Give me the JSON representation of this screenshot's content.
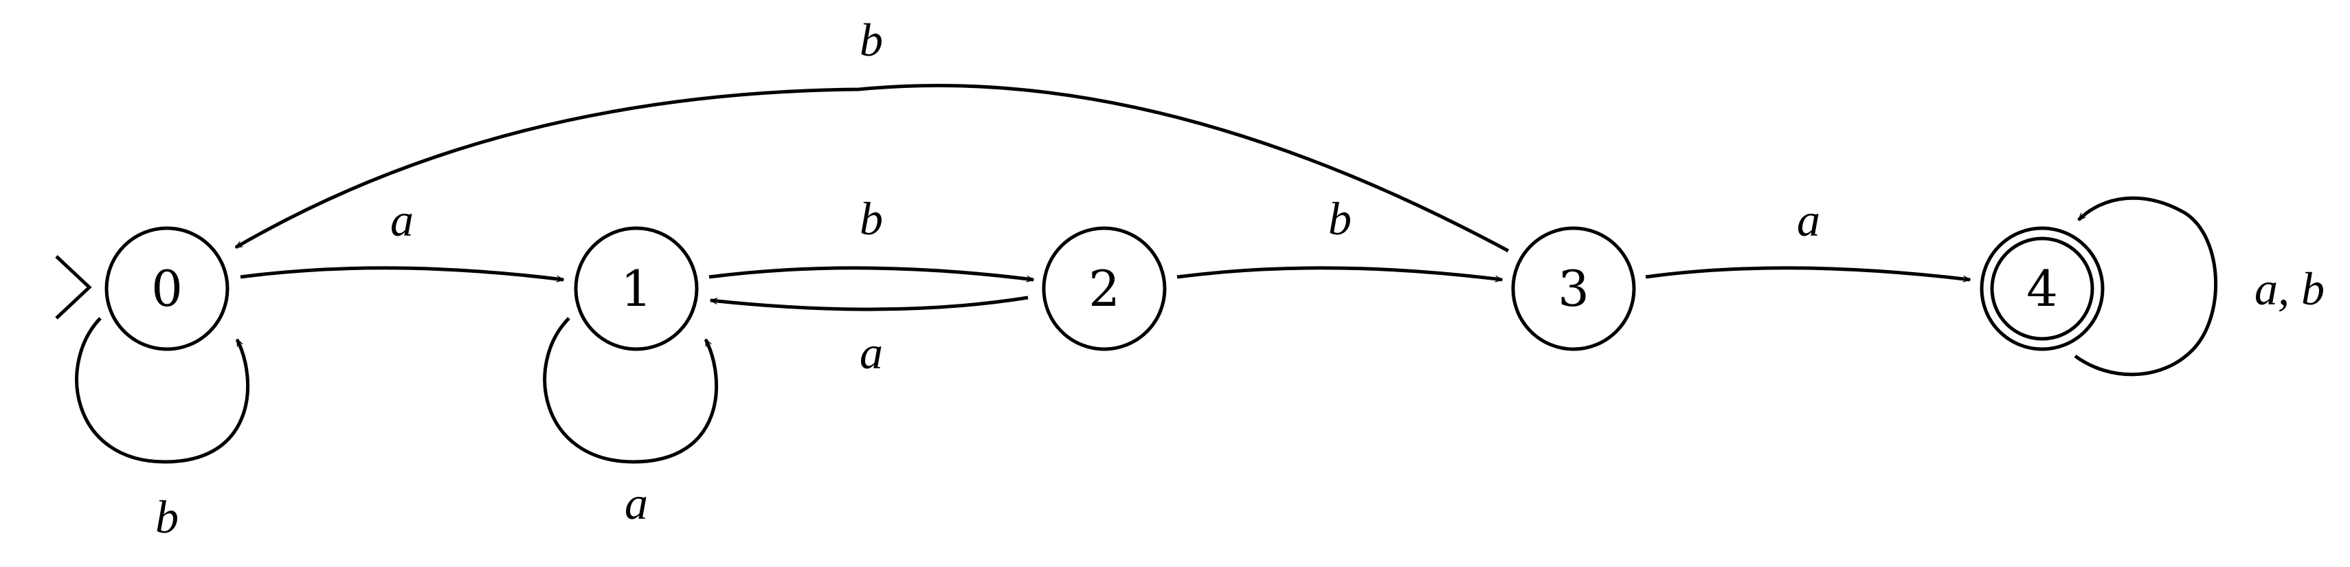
{
  "automaton": {
    "initial_state": "0",
    "accepting_states": [
      "4"
    ],
    "states": [
      {
        "id": "0",
        "label": "0"
      },
      {
        "id": "1",
        "label": "1"
      },
      {
        "id": "2",
        "label": "2"
      },
      {
        "id": "3",
        "label": "3"
      },
      {
        "id": "4",
        "label": "4"
      }
    ],
    "transitions": [
      {
        "from": "0",
        "to": "0",
        "label": "b"
      },
      {
        "from": "0",
        "to": "1",
        "label": "a"
      },
      {
        "from": "1",
        "to": "1",
        "label": "a"
      },
      {
        "from": "1",
        "to": "2",
        "label": "b"
      },
      {
        "from": "2",
        "to": "1",
        "label": "a"
      },
      {
        "from": "2",
        "to": "3",
        "label": "b"
      },
      {
        "from": "3",
        "to": "0",
        "label": "b"
      },
      {
        "from": "3",
        "to": "4",
        "label": "a"
      },
      {
        "from": "4",
        "to": "4",
        "label": "a, b"
      }
    ]
  },
  "colors": {
    "stroke": "#000000",
    "background": "#ffffff"
  }
}
